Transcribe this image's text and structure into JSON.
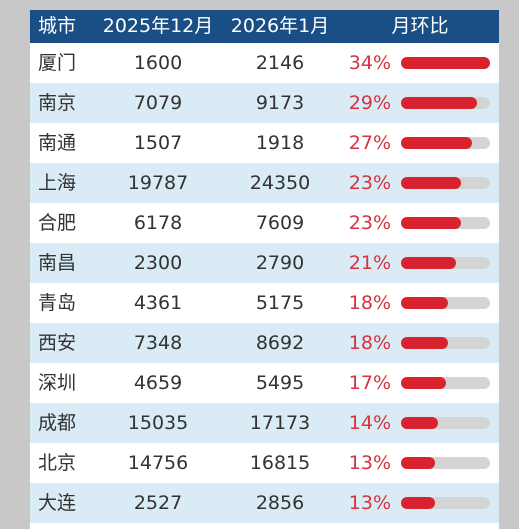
{
  "chart_data": {
    "type": "table",
    "columns": [
      "城市",
      "2025年12月",
      "2026年1月",
      "月环比"
    ],
    "rows": [
      {
        "city": "厦门",
        "dec2025": "1600",
        "jan2026": "2146",
        "mom": "34%",
        "mom_value": 34
      },
      {
        "city": "南京",
        "dec2025": "7079",
        "jan2026": "9173",
        "mom": "29%",
        "mom_value": 29
      },
      {
        "city": "南通",
        "dec2025": "1507",
        "jan2026": "1918",
        "mom": "27%",
        "mom_value": 27
      },
      {
        "city": "上海",
        "dec2025": "19787",
        "jan2026": "24350",
        "mom": "23%",
        "mom_value": 23
      },
      {
        "city": "合肥",
        "dec2025": "6178",
        "jan2026": "7609",
        "mom": "23%",
        "mom_value": 23
      },
      {
        "city": "南昌",
        "dec2025": "2300",
        "jan2026": "2790",
        "mom": "21%",
        "mom_value": 21
      },
      {
        "city": "青岛",
        "dec2025": "4361",
        "jan2026": "5175",
        "mom": "18%",
        "mom_value": 18
      },
      {
        "city": "西安",
        "dec2025": "7348",
        "jan2026": "8692",
        "mom": "18%",
        "mom_value": 18
      },
      {
        "city": "深圳",
        "dec2025": "4659",
        "jan2026": "5495",
        "mom": "17%",
        "mom_value": 17
      },
      {
        "city": "成都",
        "dec2025": "15035",
        "jan2026": "17173",
        "mom": "14%",
        "mom_value": 14
      },
      {
        "city": "北京",
        "dec2025": "14756",
        "jan2026": "16815",
        "mom": "13%",
        "mom_value": 13
      },
      {
        "city": "大连",
        "dec2025": "2527",
        "jan2026": "2856",
        "mom": "13%",
        "mom_value": 13
      }
    ],
    "bar_max": 34,
    "colors": {
      "header_bg": "#1a4f86",
      "alt_row_bg": "#d9ecf6",
      "bar_fill": "#d8232f",
      "bar_track": "#d4d4d4",
      "percent_text": "#d8323e"
    }
  }
}
